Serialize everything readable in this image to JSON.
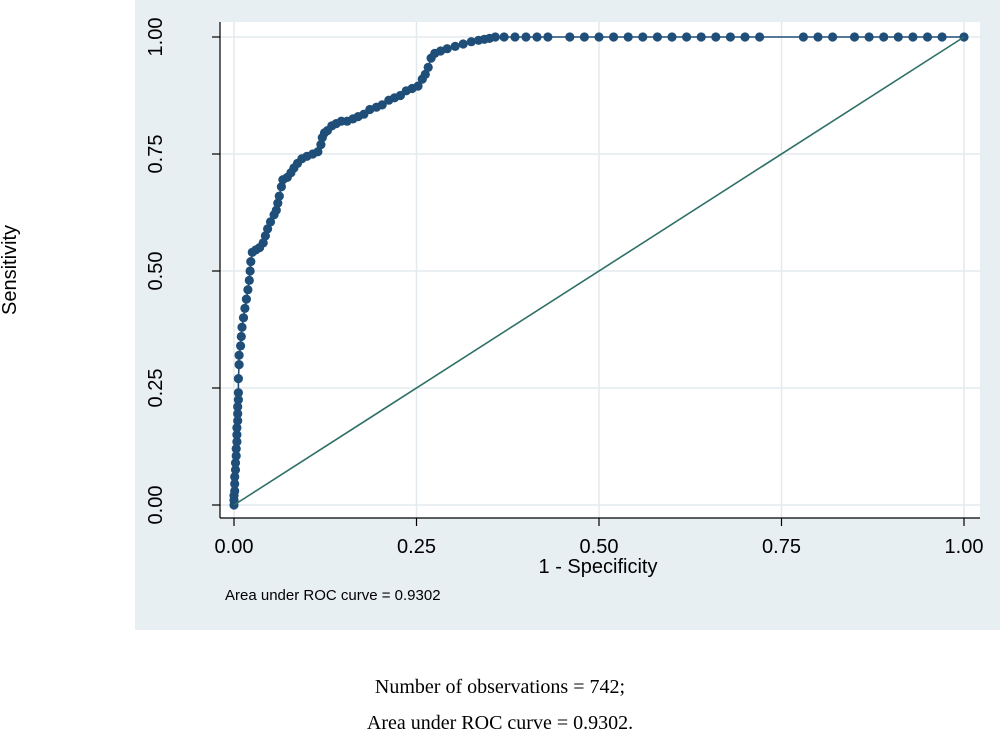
{
  "chart_data": {
    "type": "scatter",
    "title": "",
    "xlabel": "1 - Specificity",
    "ylabel": "Sensitivity",
    "xlim": [
      0,
      1
    ],
    "ylim": [
      0,
      1
    ],
    "x_ticks": [
      "0.00",
      "0.25",
      "0.50",
      "0.75",
      "1.00"
    ],
    "y_ticks": [
      "0.00",
      "0.25",
      "0.50",
      "0.75",
      "1.00"
    ],
    "grid": true,
    "note": "Area under ROC curve = 0.9302",
    "auc": 0.9302,
    "series": [
      {
        "name": "ROC curve",
        "style": "line-with-markers",
        "color": "#1f4e79",
        "points": [
          [
            0.0,
            0.0
          ],
          [
            0.0,
            0.01
          ],
          [
            0.0,
            0.02
          ],
          [
            0.001,
            0.03
          ],
          [
            0.001,
            0.045
          ],
          [
            0.001,
            0.06
          ],
          [
            0.002,
            0.075
          ],
          [
            0.002,
            0.09
          ],
          [
            0.003,
            0.105
          ],
          [
            0.003,
            0.12
          ],
          [
            0.004,
            0.135
          ],
          [
            0.004,
            0.15
          ],
          [
            0.004,
            0.165
          ],
          [
            0.005,
            0.18
          ],
          [
            0.005,
            0.195
          ],
          [
            0.005,
            0.21
          ],
          [
            0.006,
            0.225
          ],
          [
            0.006,
            0.24
          ],
          [
            0.006,
            0.27
          ],
          [
            0.007,
            0.3
          ],
          [
            0.007,
            0.32
          ],
          [
            0.009,
            0.34
          ],
          [
            0.01,
            0.36
          ],
          [
            0.011,
            0.38
          ],
          [
            0.013,
            0.4
          ],
          [
            0.015,
            0.42
          ],
          [
            0.017,
            0.44
          ],
          [
            0.019,
            0.46
          ],
          [
            0.021,
            0.48
          ],
          [
            0.022,
            0.5
          ],
          [
            0.023,
            0.52
          ],
          [
            0.025,
            0.54
          ],
          [
            0.03,
            0.545
          ],
          [
            0.035,
            0.55
          ],
          [
            0.04,
            0.56
          ],
          [
            0.043,
            0.575
          ],
          [
            0.046,
            0.59
          ],
          [
            0.05,
            0.605
          ],
          [
            0.055,
            0.62
          ],
          [
            0.058,
            0.63
          ],
          [
            0.06,
            0.645
          ],
          [
            0.062,
            0.66
          ],
          [
            0.065,
            0.68
          ],
          [
            0.067,
            0.695
          ],
          [
            0.073,
            0.7
          ],
          [
            0.078,
            0.71
          ],
          [
            0.082,
            0.72
          ],
          [
            0.087,
            0.73
          ],
          [
            0.093,
            0.74
          ],
          [
            0.1,
            0.745
          ],
          [
            0.108,
            0.75
          ],
          [
            0.115,
            0.755
          ],
          [
            0.119,
            0.77
          ],
          [
            0.121,
            0.785
          ],
          [
            0.124,
            0.795
          ],
          [
            0.128,
            0.8
          ],
          [
            0.134,
            0.81
          ],
          [
            0.14,
            0.815
          ],
          [
            0.147,
            0.82
          ],
          [
            0.155,
            0.82
          ],
          [
            0.163,
            0.825
          ],
          [
            0.17,
            0.83
          ],
          [
            0.178,
            0.835
          ],
          [
            0.186,
            0.845
          ],
          [
            0.195,
            0.85
          ],
          [
            0.203,
            0.855
          ],
          [
            0.212,
            0.865
          ],
          [
            0.22,
            0.87
          ],
          [
            0.228,
            0.875
          ],
          [
            0.236,
            0.885
          ],
          [
            0.244,
            0.89
          ],
          [
            0.252,
            0.895
          ],
          [
            0.258,
            0.91
          ],
          [
            0.262,
            0.92
          ],
          [
            0.266,
            0.935
          ],
          [
            0.27,
            0.955
          ],
          [
            0.275,
            0.965
          ],
          [
            0.283,
            0.97
          ],
          [
            0.292,
            0.975
          ],
          [
            0.303,
            0.98
          ],
          [
            0.314,
            0.985
          ],
          [
            0.325,
            0.99
          ],
          [
            0.335,
            0.993
          ],
          [
            0.343,
            0.995
          ],
          [
            0.35,
            0.997
          ],
          [
            0.358,
            1.0
          ],
          [
            0.37,
            1.0
          ],
          [
            0.385,
            1.0
          ],
          [
            0.4,
            1.0
          ],
          [
            0.415,
            1.0
          ],
          [
            0.43,
            1.0
          ],
          [
            0.46,
            1.0
          ],
          [
            0.48,
            1.0
          ],
          [
            0.5,
            1.0
          ],
          [
            0.52,
            1.0
          ],
          [
            0.54,
            1.0
          ],
          [
            0.56,
            1.0
          ],
          [
            0.58,
            1.0
          ],
          [
            0.6,
            1.0
          ],
          [
            0.62,
            1.0
          ],
          [
            0.64,
            1.0
          ],
          [
            0.66,
            1.0
          ],
          [
            0.68,
            1.0
          ],
          [
            0.7,
            1.0
          ],
          [
            0.72,
            1.0
          ],
          [
            0.78,
            1.0
          ],
          [
            0.8,
            1.0
          ],
          [
            0.82,
            1.0
          ],
          [
            0.85,
            1.0
          ],
          [
            0.87,
            1.0
          ],
          [
            0.89,
            1.0
          ],
          [
            0.91,
            1.0
          ],
          [
            0.93,
            1.0
          ],
          [
            0.95,
            1.0
          ],
          [
            0.97,
            1.0
          ],
          [
            1.0,
            1.0
          ]
        ]
      },
      {
        "name": "Reference line",
        "style": "line",
        "color": "#2e7066",
        "points": [
          [
            0,
            0
          ],
          [
            1,
            1
          ]
        ]
      }
    ]
  },
  "captions": {
    "line1": "Number of observations = 742;",
    "line2": "Area under ROC curve = 0.9302."
  }
}
